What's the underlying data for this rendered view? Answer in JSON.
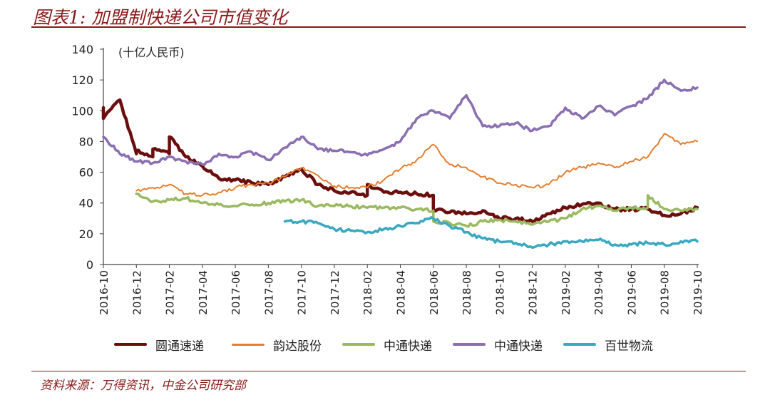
{
  "title": "图表1: 加盟制快递公司市值变化",
  "source": "资料来源：万得资讯，中金公司研究部",
  "colors": {
    "rule": "#8b1a1a",
    "axis": "#444444",
    "text": "#222222"
  },
  "chart_data": {
    "type": "line",
    "unit_label": "(十亿人民币)",
    "ylim": [
      0,
      140
    ],
    "yticks": [
      0,
      20,
      40,
      60,
      80,
      100,
      120,
      140
    ],
    "xlabels": [
      "2016-10",
      "2016-12",
      "2017-02",
      "2017-04",
      "2017-06",
      "2017-08",
      "2017-10",
      "2017-12",
      "2018-02",
      "2018-04",
      "2018-06",
      "2018-08",
      "2018-10",
      "2018-12",
      "2019-02",
      "2019-04",
      "2019-06",
      "2019-08",
      "2019-10"
    ],
    "xlim": [
      "2016-10",
      "2019-10"
    ],
    "grid": false,
    "legend_position": "bottom",
    "series": [
      {
        "name": "圆通速递",
        "color": "#6b0e0e",
        "stroke": 4.5,
        "x": [
          "2016-10",
          "2016-10",
          "2016-11",
          "2016-11",
          "2016-11",
          "2016-12",
          "2016-12",
          "2017-01",
          "2017-01",
          "2017-02",
          "2017-02",
          "2017-03",
          "2017-04",
          "2017-05",
          "2017-06",
          "2017-07",
          "2017-08",
          "2017-09",
          "2017-10",
          "2017-11",
          "2017-12",
          "2018-01",
          "2018-02",
          "2018-02",
          "2018-03",
          "2018-04",
          "2018-05",
          "2018-06",
          "2018-06",
          "2018-07",
          "2018-08",
          "2018-09",
          "2018-10",
          "2018-11",
          "2018-12",
          "2019-01",
          "2019-02",
          "2019-03",
          "2019-04",
          "2019-05",
          "2019-06",
          "2019-07",
          "2019-08",
          "2019-09",
          "2019-10"
        ],
        "y": [
          102,
          95,
          107,
          107,
          107,
          72,
          74,
          70,
          75,
          72,
          83,
          70,
          64,
          56,
          55,
          53,
          52,
          57,
          62,
          52,
          48,
          47,
          45,
          52,
          47,
          47,
          46,
          45,
          36,
          34,
          33,
          35,
          30,
          30,
          28,
          33,
          37,
          39,
          40,
          36,
          36,
          36,
          32,
          33,
          37
        ]
      },
      {
        "name": "韵达股份",
        "color": "#e57e2e",
        "stroke": 2,
        "x": [
          "2016-12",
          "2017-01",
          "2017-02",
          "2017-03",
          "2017-04",
          "2017-05",
          "2017-06",
          "2017-07",
          "2017-08",
          "2017-09",
          "2017-10",
          "2017-11",
          "2017-12",
          "2018-01",
          "2018-02",
          "2018-03",
          "2018-04",
          "2018-05",
          "2018-06",
          "2018-07",
          "2018-08",
          "2018-09",
          "2018-10",
          "2018-11",
          "2018-12",
          "2019-01",
          "2019-02",
          "2019-03",
          "2019-04",
          "2019-05",
          "2019-06",
          "2019-07",
          "2019-08",
          "2019-09",
          "2019-10"
        ],
        "y": [
          48,
          50,
          52,
          46,
          45,
          47,
          50,
          52,
          53,
          57,
          63,
          58,
          51,
          50,
          50,
          55,
          62,
          68,
          78,
          65,
          63,
          57,
          53,
          52,
          50,
          52,
          60,
          63,
          66,
          63,
          67,
          70,
          85,
          78,
          80
        ]
      },
      {
        "name": "中通快递",
        "color": "#9ab960",
        "stroke": 3.5,
        "x": [
          "2016-12",
          "2017-01",
          "2017-02",
          "2017-03",
          "2017-04",
          "2017-05",
          "2017-06",
          "2017-07",
          "2017-08",
          "2017-09",
          "2017-10",
          "2017-11",
          "2017-12",
          "2018-01",
          "2018-02",
          "2018-03",
          "2018-04",
          "2018-05",
          "2018-06",
          "2018-06",
          "2018-07",
          "2018-08",
          "2018-09",
          "2018-10",
          "2018-11",
          "2018-12",
          "2019-01",
          "2019-02",
          "2019-03",
          "2019-04",
          "2019-05",
          "2019-06",
          "2019-07",
          "2019-07",
          "2019-08",
          "2019-09",
          "2019-10"
        ],
        "y": [
          46,
          41,
          42,
          43,
          40,
          39,
          38,
          39,
          40,
          41,
          42,
          38,
          38,
          38,
          37,
          37,
          37,
          36,
          35,
          28,
          27,
          25,
          28,
          29,
          28,
          26,
          28,
          30,
          36,
          38,
          35,
          37,
          37,
          45,
          36,
          35,
          36
        ]
      },
      {
        "name": "中通快递",
        "color": "#8b6fb0",
        "stroke": 3.5,
        "x": [
          "2016-10",
          "2016-11",
          "2016-12",
          "2017-01",
          "2017-02",
          "2017-03",
          "2017-04",
          "2017-05",
          "2017-06",
          "2017-07",
          "2017-08",
          "2017-09",
          "2017-10",
          "2017-11",
          "2017-12",
          "2018-01",
          "2018-02",
          "2018-03",
          "2018-04",
          "2018-05",
          "2018-06",
          "2018-07",
          "2018-08",
          "2018-09",
          "2018-10",
          "2018-11",
          "2018-12",
          "2019-01",
          "2019-02",
          "2019-03",
          "2019-04",
          "2019-05",
          "2019-06",
          "2019-07",
          "2019-08",
          "2019-09",
          "2019-10"
        ],
        "y": [
          83,
          72,
          67,
          66,
          70,
          67,
          65,
          72,
          70,
          73,
          68,
          76,
          83,
          75,
          74,
          73,
          71,
          75,
          80,
          95,
          100,
          95,
          110,
          90,
          90,
          92,
          87,
          90,
          102,
          95,
          103,
          97,
          103,
          108,
          120,
          113,
          115
        ]
      },
      {
        "name": "百世物流",
        "color": "#3aa8c1",
        "stroke": 3.5,
        "x": [
          "2017-09",
          "2017-10",
          "2017-11",
          "2017-12",
          "2018-01",
          "2018-02",
          "2018-03",
          "2018-04",
          "2018-05",
          "2018-06",
          "2018-07",
          "2018-08",
          "2018-09",
          "2018-10",
          "2018-11",
          "2018-12",
          "2019-01",
          "2019-02",
          "2019-03",
          "2019-04",
          "2019-05",
          "2019-06",
          "2019-07",
          "2019-08",
          "2019-09",
          "2019-10"
        ],
        "y": [
          28,
          28,
          27,
          23,
          22,
          21,
          23,
          25,
          27,
          30,
          25,
          21,
          17,
          15,
          14,
          11,
          13,
          15,
          15,
          16,
          13,
          13,
          14,
          13,
          15,
          15
        ]
      }
    ]
  }
}
